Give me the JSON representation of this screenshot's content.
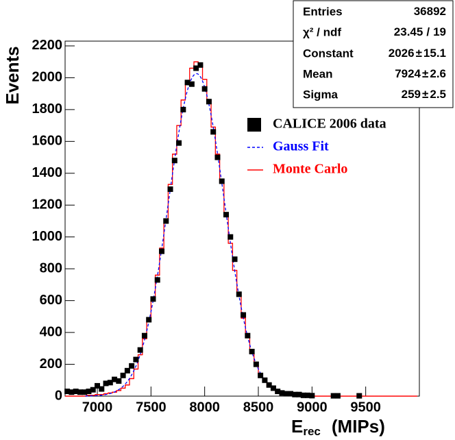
{
  "chart_data": {
    "type": "histogram",
    "ylabel": "Events",
    "xlabel": {
      "main": "E",
      "sub": "rec",
      "unit": "(MIPs)"
    },
    "xlim": [
      6700,
      10000
    ],
    "ylim": [
      0,
      2230
    ],
    "xticks": [
      7000,
      7500,
      8000,
      8500,
      9000,
      9500
    ],
    "yticks": [
      0,
      200,
      400,
      600,
      800,
      1000,
      1200,
      1400,
      1600,
      1800,
      2000,
      2200
    ],
    "bins": [
      6700,
      6740,
      6780,
      6820,
      6860,
      6900,
      6940,
      6980,
      7020,
      7060,
      7100,
      7140,
      7180,
      7220,
      7260,
      7300,
      7340,
      7380,
      7420,
      7460,
      7500,
      7540,
      7580,
      7620,
      7660,
      7700,
      7740,
      7780,
      7820,
      7860,
      7900,
      7940,
      7980,
      8020,
      8060,
      8100,
      8140,
      8180,
      8220,
      8260,
      8300,
      8340,
      8380,
      8420,
      8460,
      8500,
      8540,
      8580,
      8620,
      8660,
      8700,
      8740,
      8780,
      8820,
      8860,
      8900,
      8940,
      8980,
      9020,
      9060,
      9100,
      9140,
      9180,
      9220,
      9260,
      9300,
      9340,
      9380,
      9420,
      9460,
      9500,
      9540,
      9580,
      9620,
      9660,
      9700,
      9740,
      9780,
      9820,
      9860,
      9900,
      9940,
      9980
    ],
    "series": [
      {
        "name": "CALICE 2006 data",
        "color": "#000000",
        "style": "markers",
        "values": [
          30,
          25,
          30,
          25,
          25,
          30,
          40,
          65,
          45,
          80,
          85,
          105,
          95,
          130,
          160,
          190,
          230,
          290,
          380,
          480,
          610,
          730,
          910,
          1100,
          1300,
          1480,
          1590,
          1800,
          1970,
          1960,
          2060,
          2080,
          1930,
          1850,
          1660,
          1500,
          1350,
          1140,
          1000,
          860,
          640,
          510,
          380,
          280,
          200,
          130,
          100,
          70,
          50,
          30,
          20,
          15,
          15,
          10,
          10,
          5,
          5,
          3,
          0,
          0,
          0,
          0,
          2,
          2,
          0,
          0,
          0,
          0,
          2,
          0,
          0,
          0,
          0,
          0,
          0,
          0,
          0,
          0,
          0,
          0,
          0,
          0
        ]
      },
      {
        "name": "Monte Carlo",
        "color": "#ff0000",
        "style": "step",
        "values": [
          0,
          0,
          0,
          0,
          0,
          5,
          5,
          10,
          10,
          15,
          20,
          25,
          35,
          50,
          70,
          110,
          170,
          260,
          360,
          480,
          620,
          760,
          930,
          1110,
          1330,
          1520,
          1700,
          1860,
          1980,
          2060,
          2100,
          2080,
          1990,
          1860,
          1690,
          1520,
          1340,
          1150,
          960,
          790,
          630,
          490,
          370,
          270,
          190,
          130,
          90,
          60,
          40,
          25,
          15,
          10,
          8,
          5,
          3,
          2,
          1,
          1,
          0,
          0,
          0,
          0,
          0,
          0,
          0,
          0,
          0,
          0,
          0,
          0,
          0,
          0,
          0,
          0,
          0,
          0,
          0,
          0,
          0,
          0,
          0,
          0
        ]
      }
    ],
    "fit": {
      "name": "Gauss Fit",
      "color": "#0000ff"
    },
    "stats": {
      "pm": "±",
      "ndf_sep": "/",
      "rows": [
        {
          "label": "Entries",
          "value": 36892
        },
        {
          "label": "χ² / ndf",
          "value": 23.45,
          "ndf": 19
        },
        {
          "label": "Constant",
          "value": 2026,
          "error": 15.1
        },
        {
          "label": "Mean",
          "value": 7924,
          "error": 2.6
        },
        {
          "label": "Sigma",
          "value": 259,
          "error": 2.5
        }
      ]
    }
  }
}
